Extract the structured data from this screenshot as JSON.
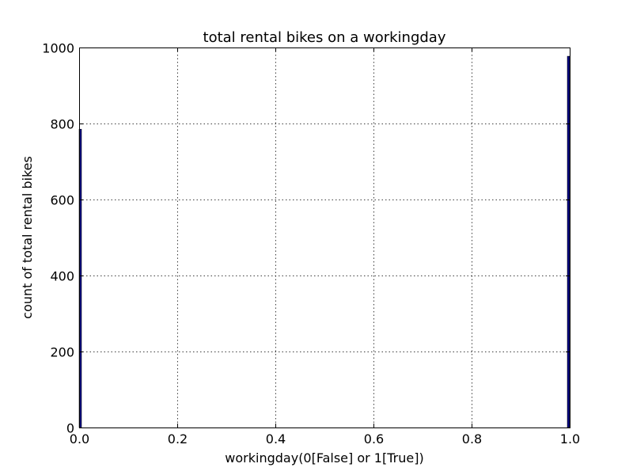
{
  "chart_data": {
    "type": "bar",
    "title": "total rental bikes on a workingday",
    "xlabel": "workingday(0[False] or 1[True])",
    "ylabel": "count of total rental bikes",
    "xlim": [
      0.0,
      1.0
    ],
    "ylim": [
      0,
      1000
    ],
    "xticks": [
      "0.0",
      "0.2",
      "0.4",
      "0.6",
      "0.8",
      "1.0"
    ],
    "yticks": [
      "0",
      "200",
      "400",
      "600",
      "800",
      "1000"
    ],
    "grid": true,
    "bar_color": "#000080",
    "categories": [
      0,
      1
    ],
    "values": [
      785,
      977
    ]
  }
}
